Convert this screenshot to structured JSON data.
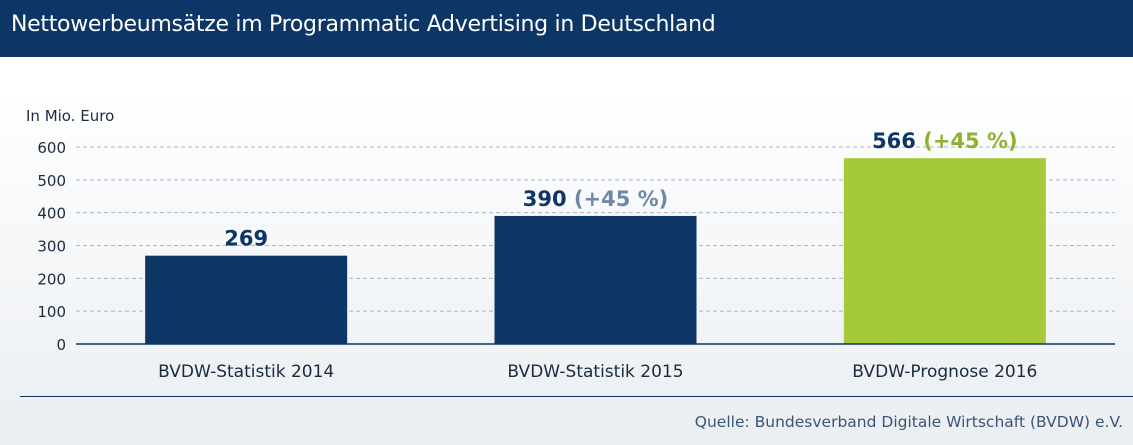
{
  "title": "Nettowerbeumsätze im Programmatic Advertising in Deutschland",
  "source": "Quelle: Bundesverband Digitale Wirtschaft (BVDW) e.V.",
  "chart_data": {
    "type": "bar",
    "title": "Nettowerbeumsätze im Programmatic Advertising in Deutschland",
    "ylabel": "In Mio. Euro",
    "xlabel": "",
    "ylim": [
      0,
      600
    ],
    "yticks": [
      "0",
      "100",
      "200",
      "300",
      "400",
      "500",
      "600"
    ],
    "categories": [
      "BVDW-Statistik 2014",
      "BVDW-Statistik 2015",
      "BVDW-Prognose 2016"
    ],
    "values": [
      269,
      390,
      566
    ],
    "value_labels": [
      "269",
      "390",
      "566"
    ],
    "change_labels": [
      "",
      "(+45 %)",
      "(+45 %)"
    ],
    "bar_colors": [
      "#0d3566",
      "#0d3566",
      "#a6c93a"
    ],
    "change_colors": [
      "",
      "#6f88a8",
      "#8fb22e"
    ],
    "grid": true
  }
}
